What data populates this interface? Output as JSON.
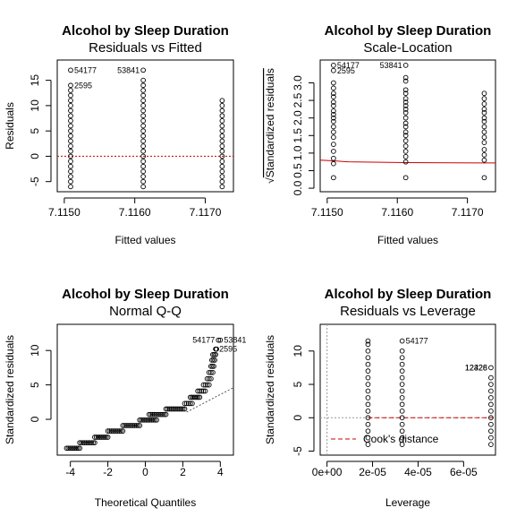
{
  "figure_title": "Alcohol by Sleep Duration",
  "chart_data": [
    {
      "type": "scatter",
      "title": "Alcohol by Sleep Duration",
      "subtitle": "Residuals vs Fitted",
      "xlabel": "Fitted values",
      "ylabel": "Residuals",
      "xlim": [
        7.1149,
        7.1174
      ],
      "ylim": [
        -7.0,
        19.0
      ],
      "xticks": [
        7.115,
        7.116,
        7.117
      ],
      "xtick_labels": [
        "7.1150",
        "7.1160",
        "7.1170"
      ],
      "yticks": [
        -5,
        0,
        5,
        10,
        15
      ],
      "reference_line": {
        "type": "hline",
        "y": 0,
        "color": "#cc0000",
        "style": "dotted"
      },
      "groups": [
        {
          "x": 7.11509,
          "y_from": -6,
          "y_to": 13,
          "extra_y": [
            14,
            17
          ]
        },
        {
          "x": 7.11612,
          "y_from": -6,
          "y_to": 15,
          "extra_y": [
            17
          ]
        },
        {
          "x": 7.11724,
          "y_from": -6,
          "y_to": 11,
          "extra_y": []
        }
      ],
      "point_labels": [
        {
          "text": "54177",
          "x": 7.11509,
          "y": 17,
          "side": "right"
        },
        {
          "text": "2595",
          "x": 7.11509,
          "y": 14,
          "side": "right"
        },
        {
          "text": "53841",
          "x": 7.11612,
          "y": 17,
          "side": "left"
        }
      ]
    },
    {
      "type": "scatter",
      "title": "Alcohol by Sleep Duration",
      "subtitle": "Scale-Location",
      "xlabel": "Fitted values",
      "ylabel": "Standardized residuals",
      "ylabel_prefix": "√",
      "xlim": [
        7.1149,
        7.1174
      ],
      "ylim": [
        -0.1,
        3.65
      ],
      "xticks": [
        7.115,
        7.116,
        7.117
      ],
      "xtick_labels": [
        "7.1150",
        "7.1160",
        "7.1170"
      ],
      "yticks": [
        0.0,
        0.5,
        1.0,
        1.5,
        2.0,
        2.5,
        3.0
      ],
      "ytick_labels": [
        "0.0",
        "0.5",
        "1.0",
        "1.5",
        "2.0",
        "2.5",
        "3.0"
      ],
      "smoother": {
        "color": "#cc0000",
        "x": [
          7.1149,
          7.11509,
          7.1153,
          7.11612,
          7.11724,
          7.1174
        ],
        "y": [
          0.8,
          0.78,
          0.75,
          0.73,
          0.72,
          0.72
        ]
      },
      "groups": [
        {
          "x": 7.11509,
          "values": [
            0.3,
            0.7,
            0.85,
            1.05,
            1.25,
            1.45,
            1.6,
            1.75,
            1.9,
            2.0,
            2.1,
            2.2,
            2.35,
            2.45,
            2.6,
            2.7,
            2.85,
            3.0,
            3.35,
            3.5
          ]
        },
        {
          "x": 7.11612,
          "values": [
            0.3,
            0.75,
            0.9,
            1.05,
            1.2,
            1.35,
            1.5,
            1.6,
            1.75,
            1.85,
            2.0,
            2.15,
            2.25,
            2.35,
            2.45,
            2.55,
            2.7,
            2.8,
            3.05,
            3.15,
            3.5
          ]
        },
        {
          "x": 7.11724,
          "values": [
            0.3,
            0.8,
            0.95,
            1.1,
            1.3,
            1.45,
            1.6,
            1.75,
            1.9,
            2.0,
            2.15,
            2.25,
            2.4,
            2.55,
            2.7
          ]
        }
      ],
      "point_labels": [
        {
          "text": "54177",
          "x": 7.11509,
          "y": 3.5,
          "side": "right"
        },
        {
          "text": "2595",
          "x": 7.11509,
          "y": 3.35,
          "side": "right"
        },
        {
          "text": "53841",
          "x": 7.11612,
          "y": 3.5,
          "side": "left"
        }
      ]
    },
    {
      "type": "scatter",
      "title": "Alcohol by Sleep Duration",
      "subtitle": "Normal Q-Q",
      "xlabel": "Theoretical Quantiles",
      "ylabel": "Standardized residuals",
      "xlim": [
        -4.7,
        4.7
      ],
      "ylim": [
        -5.2,
        13.8
      ],
      "xticks": [
        -4,
        -2,
        0,
        2,
        4
      ],
      "yticks": [
        0,
        5,
        10
      ],
      "qq_line": {
        "color": "#555555",
        "style": "dotted",
        "x": [
          2.2,
          4.7
        ],
        "y": [
          1.05,
          4.6
        ]
      },
      "steps": [
        {
          "x0": -4.2,
          "x1": -3.5,
          "y": -4.2
        },
        {
          "x0": -3.5,
          "x1": -2.7,
          "y": -3.4
        },
        {
          "x0": -2.7,
          "x1": -2.0,
          "y": -2.6
        },
        {
          "x0": -2.0,
          "x1": -1.2,
          "y": -1.7
        },
        {
          "x0": -1.2,
          "x1": -0.3,
          "y": -0.9
        },
        {
          "x0": -0.3,
          "x1": 0.6,
          "y": -0.1
        },
        {
          "x0": 0.2,
          "x1": 1.1,
          "y": 0.7
        },
        {
          "x0": 1.1,
          "x1": 2.1,
          "y": 1.5
        },
        {
          "x0": 2.1,
          "x1": 2.5,
          "y": 2.3
        },
        {
          "x0": 2.4,
          "x1": 2.9,
          "y": 3.2
        },
        {
          "x0": 2.8,
          "x1": 3.2,
          "y": 4.1
        },
        {
          "x0": 3.1,
          "x1": 3.4,
          "y": 5.0
        },
        {
          "x0": 3.3,
          "x1": 3.5,
          "y": 5.9
        },
        {
          "x0": 3.4,
          "x1": 3.6,
          "y": 6.8
        },
        {
          "x0": 3.5,
          "x1": 3.65,
          "y": 7.7
        },
        {
          "x0": 3.55,
          "x1": 3.7,
          "y": 8.6
        },
        {
          "x0": 3.6,
          "x1": 3.75,
          "y": 9.4
        },
        {
          "x0": 3.75,
          "x1": 3.8,
          "y": 10.2
        }
      ],
      "outliers": [
        {
          "x": 3.9,
          "y": 11.5
        },
        {
          "x": 4.0,
          "y": 11.5
        }
      ],
      "point_labels": [
        {
          "text": "54177",
          "x": 3.9,
          "y": 11.5,
          "side": "left"
        },
        {
          "text": "53841",
          "x": 4.0,
          "y": 11.5,
          "side": "right"
        },
        {
          "text": "2595",
          "x": 3.75,
          "y": 10.2,
          "side": "right"
        }
      ]
    },
    {
      "type": "scatter",
      "title": "Alcohol by Sleep Duration",
      "subtitle": "Residuals vs Leverage",
      "xlabel": "Leverage",
      "ylabel": "Standardized residuals",
      "xlim": [
        -3e-06,
        7.4e-05
      ],
      "ylim": [
        -5.6,
        14.0
      ],
      "xticks": [
        0,
        2e-05,
        4e-05,
        6e-05
      ],
      "xtick_labels": [
        "0e+00",
        "2e-05",
        "4e-05",
        "6e-05"
      ],
      "yticks": [
        -5,
        0,
        5,
        10
      ],
      "reference_lines": [
        {
          "type": "hline",
          "y": 0,
          "color": "#999999",
          "style": "dotted"
        },
        {
          "type": "vline",
          "x": 0,
          "color": "#999999",
          "style": "dotted"
        }
      ],
      "smoother": {
        "color": "#cc0000",
        "x": [
          1.8e-05,
          7.3e-05
        ],
        "y": [
          0,
          0
        ]
      },
      "groups": [
        {
          "x": 1.8e-05,
          "y_from": -4,
          "y_to": 11,
          "extra_y": [
            11.5
          ]
        },
        {
          "x": 3.3e-05,
          "y_from": -4,
          "y_to": 10,
          "extra_y": [
            11.5
          ]
        },
        {
          "x": 7.2e-05,
          "y_from": -4,
          "y_to": 6,
          "extra_y": [
            7.5
          ]
        }
      ],
      "point_labels": [
        {
          "text": "54177",
          "x": 3.3e-05,
          "y": 11.5,
          "side": "right"
        },
        {
          "text": "12426",
          "x": 7.2e-05,
          "y": 7.5,
          "side": "left"
        },
        {
          "text": "12328",
          "x": 7.2e-05,
          "y": 7.5,
          "side": "left"
        }
      ],
      "legend": {
        "label": "Cook's distance",
        "color": "#cc0000",
        "style": "dashed",
        "position": "bottom-left"
      }
    }
  ]
}
